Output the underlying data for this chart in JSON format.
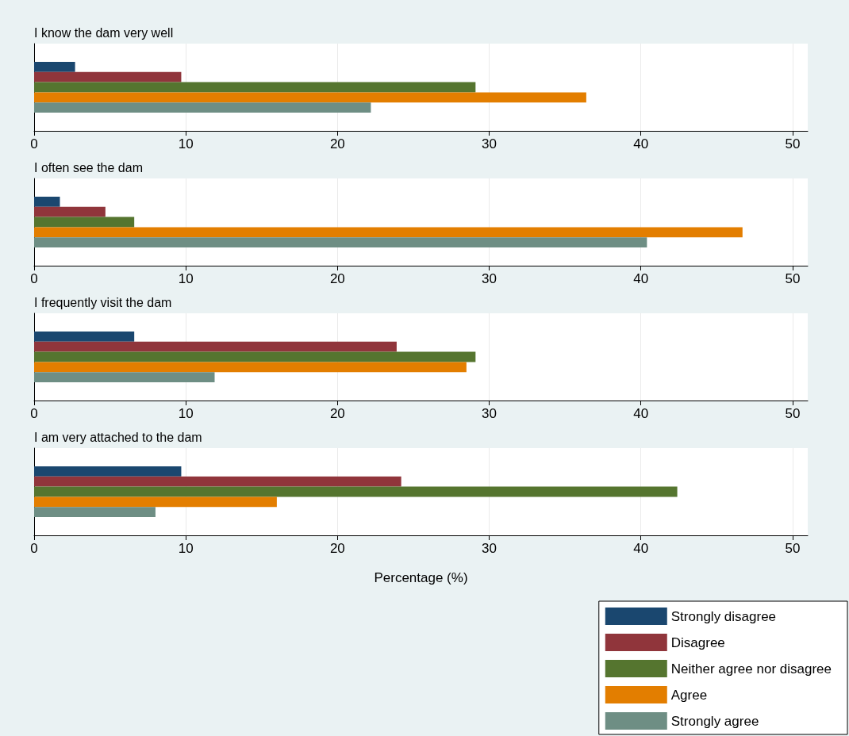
{
  "chart_data": [
    {
      "type": "bar",
      "orientation": "horizontal",
      "title": "I know the dam very well",
      "categories": [
        null
      ],
      "xlim": [
        0,
        51
      ],
      "xticks": [
        0,
        10,
        20,
        30,
        40,
        50
      ],
      "grid": "x",
      "tick_labels": "x",
      "series": [
        {
          "color": "#1a476f",
          "values": [
            2.7
          ]
        },
        {
          "color": "#90353b",
          "values": [
            9.7
          ]
        },
        {
          "color": "#55752f",
          "values": [
            29.1
          ]
        },
        {
          "color": "#e37e00",
          "values": [
            36.4
          ]
        },
        {
          "color": "#6e8e84",
          "values": [
            22.2
          ]
        }
      ]
    },
    {
      "type": "bar",
      "orientation": "horizontal",
      "title": "I often see the dam",
      "categories": [
        null
      ],
      "xlim": [
        0,
        51
      ],
      "xticks": [
        0,
        10,
        20,
        30,
        40,
        50
      ],
      "grid": "x",
      "tick_labels": "x",
      "series": [
        {
          "color": "#1a476f",
          "values": [
            1.7
          ]
        },
        {
          "color": "#90353b",
          "values": [
            4.7
          ]
        },
        {
          "color": "#55752f",
          "values": [
            6.6
          ]
        },
        {
          "color": "#e37e00",
          "values": [
            46.7
          ]
        },
        {
          "color": "#6e8e84",
          "values": [
            40.4
          ]
        }
      ]
    },
    {
      "type": "bar",
      "orientation": "horizontal",
      "title": "I frequently visit the dam",
      "categories": [
        null
      ],
      "xlim": [
        0,
        51
      ],
      "xticks": [
        0,
        10,
        20,
        30,
        40,
        50
      ],
      "grid": "x",
      "tick_labels": "x",
      "series": [
        {
          "color": "#1a476f",
          "values": [
            6.6
          ]
        },
        {
          "color": "#90353b",
          "values": [
            23.9
          ]
        },
        {
          "color": "#55752f",
          "values": [
            29.1
          ]
        },
        {
          "color": "#e37e00",
          "values": [
            28.5
          ]
        },
        {
          "color": "#6e8e84",
          "values": [
            11.9
          ]
        }
      ]
    },
    {
      "type": "bar",
      "orientation": "horizontal",
      "title": "I am very attached to the dam",
      "xlabel": "Percentage (%)",
      "categories": [
        null
      ],
      "xlim": [
        0,
        51
      ],
      "xticks": [
        0,
        10,
        20,
        30,
        40,
        50
      ],
      "grid": "x",
      "tick_labels": "x",
      "legend": "bottom right",
      "series": [
        {
          "name": "Strongly disagree",
          "color": "#1a476f",
          "values": [
            9.7
          ]
        },
        {
          "name": "Disagree",
          "color": "#90353b",
          "values": [
            24.2
          ]
        },
        {
          "name": "Neither agree nor disagree",
          "color": "#55752f",
          "values": [
            42.4
          ]
        },
        {
          "name": "Agree",
          "color": "#e37e00",
          "values": [
            16.0
          ]
        },
        {
          "name": "Strongly agree",
          "color": "#6e8e84",
          "values": [
            8.0
          ]
        }
      ]
    }
  ]
}
